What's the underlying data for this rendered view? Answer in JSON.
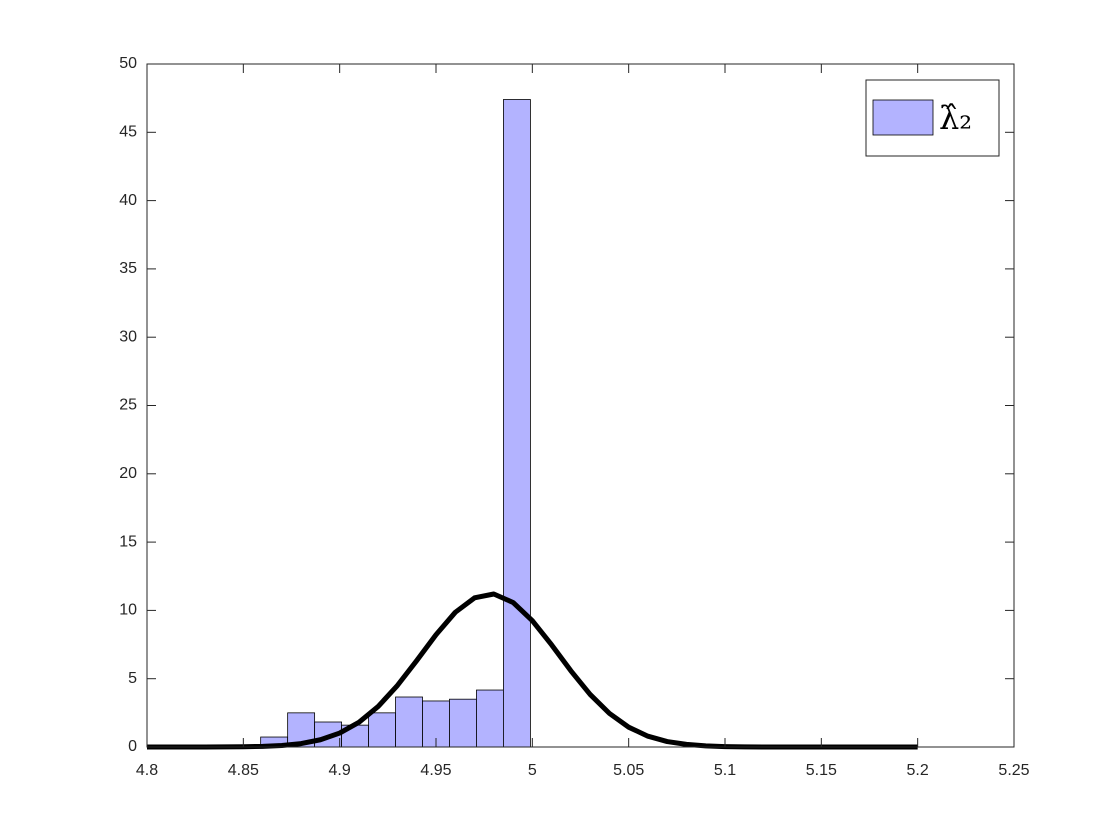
{
  "chart_data": {
    "type": "histogram",
    "bins": [
      4.859,
      4.873,
      4.887,
      4.901,
      4.915,
      4.929,
      4.943,
      4.957,
      4.971,
      4.985,
      4.999
    ],
    "values": [
      0.73,
      2.5,
      1.83,
      1.6,
      2.5,
      3.66,
      3.37,
      3.5,
      4.17,
      47.4
    ],
    "name": "λ̂₂",
    "color": "#b3b3ff",
    "edge_color": "#000000",
    "line": {
      "color": "#000000",
      "x": [
        4.8,
        4.81,
        4.82,
        4.83,
        4.84,
        4.85,
        4.86,
        4.87,
        4.88,
        4.89,
        4.9,
        4.91,
        4.92,
        4.93,
        4.94,
        4.95,
        4.96,
        4.97,
        4.98,
        4.99,
        5.0,
        5.01,
        5.02,
        5.03,
        5.04,
        5.05,
        5.06,
        5.07,
        5.08,
        5.09,
        5.1,
        5.11,
        5.12,
        5.13,
        5.14,
        5.15,
        5.16,
        5.17,
        5.18,
        5.19,
        5.2
      ],
      "y": [
        0,
        0,
        0,
        0.002,
        0.006,
        0.017,
        0.046,
        0.11,
        0.25,
        0.53,
        1.02,
        1.81,
        2.97,
        4.51,
        6.33,
        8.22,
        9.86,
        10.92,
        11.2,
        10.58,
        9.25,
        7.48,
        5.58,
        3.85,
        2.46,
        1.45,
        0.79,
        0.4,
        0.19,
        0.08,
        0.03,
        0.01,
        0,
        0,
        0,
        0,
        0,
        0,
        0,
        0,
        0
      ]
    },
    "xlim": [
      4.8,
      5.25
    ],
    "xticks": [
      4.8,
      4.85,
      4.9,
      4.95,
      5,
      5.05,
      5.1,
      5.15,
      5.2,
      5.25
    ],
    "ylim": [
      0,
      50
    ],
    "yticks": [
      0,
      5,
      10,
      15,
      20,
      25,
      30,
      35,
      40,
      45,
      50
    ],
    "legend": "upper right"
  }
}
